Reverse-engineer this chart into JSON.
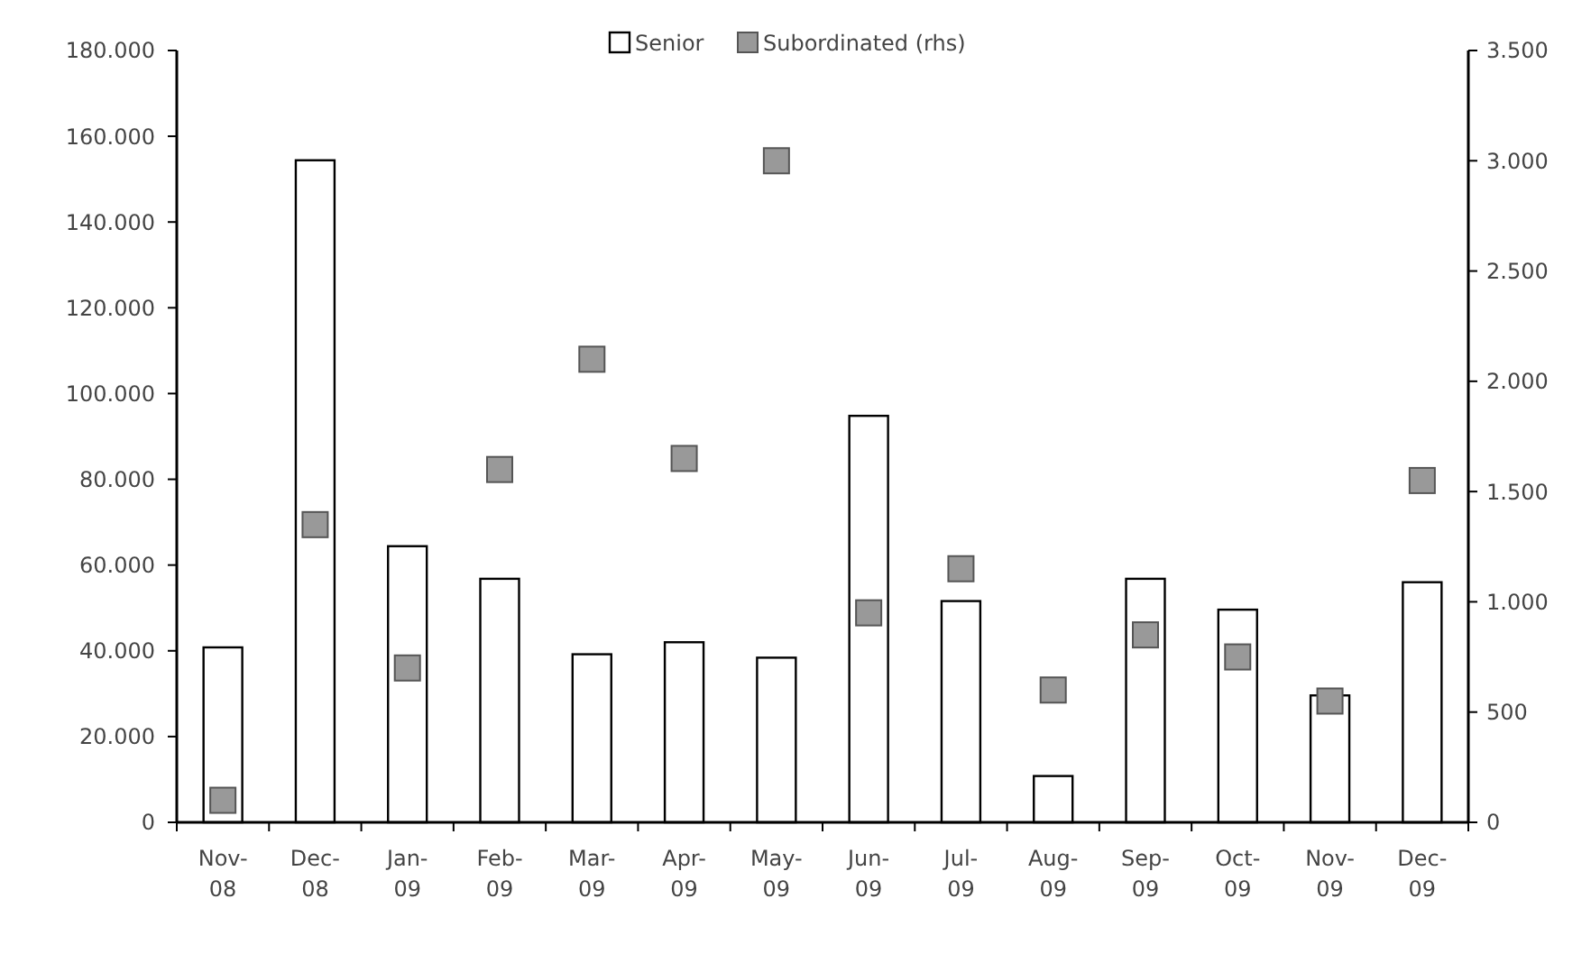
{
  "chart_data": {
    "type": "bar",
    "categories": [
      "Nov-08",
      "Dec-08",
      "Jan-09",
      "Feb-09",
      "Mar-09",
      "Apr-09",
      "May-09",
      "Jun-09",
      "Jul-09",
      "Aug-09",
      "Sep-09",
      "Oct-09",
      "Nov-09",
      "Dec-09"
    ],
    "series": [
      {
        "name": "Senior",
        "color": "#ffffff",
        "values": [
          40800,
          154400,
          64400,
          56800,
          39200,
          42000,
          38400,
          94800,
          51600,
          10800,
          56800,
          49600,
          29600,
          56000
        ]
      },
      {
        "name": "Subordinated (rhs)",
        "type": "scatter",
        "axis": "y2",
        "marker": "square",
        "color": "#999999",
        "values": [
          100,
          1350,
          700,
          1600,
          2100,
          1650,
          3000,
          950,
          1150,
          600,
          850,
          750,
          550,
          1550
        ]
      }
    ],
    "ylim": [
      0,
      180000
    ],
    "yticks": [
      {
        "value": 0,
        "label": "0"
      },
      {
        "value": 20000,
        "label": "20.000"
      },
      {
        "value": 40000,
        "label": "40.000"
      },
      {
        "value": 60000,
        "label": "60.000"
      },
      {
        "value": 80000,
        "label": "80.000"
      },
      {
        "value": 100000,
        "label": "100.000"
      },
      {
        "value": 120000,
        "label": "120.000"
      },
      {
        "value": 140000,
        "label": "140.000"
      },
      {
        "value": 160000,
        "label": "160.000"
      },
      {
        "value": 180000,
        "label": "180.000"
      }
    ],
    "y2lim": [
      0,
      3500
    ],
    "y2ticks": [
      {
        "value": 0,
        "label": "0"
      },
      {
        "value": 500,
        "label": "500"
      },
      {
        "value": 1000,
        "label": "1.000"
      },
      {
        "value": 1500,
        "label": "1.500"
      },
      {
        "value": 2000,
        "label": "2.000"
      },
      {
        "value": 2500,
        "label": "2.500"
      },
      {
        "value": 3000,
        "label": "3.000"
      },
      {
        "value": 3500,
        "label": "3.500"
      }
    ],
    "legend": "top",
    "grid": false
  }
}
